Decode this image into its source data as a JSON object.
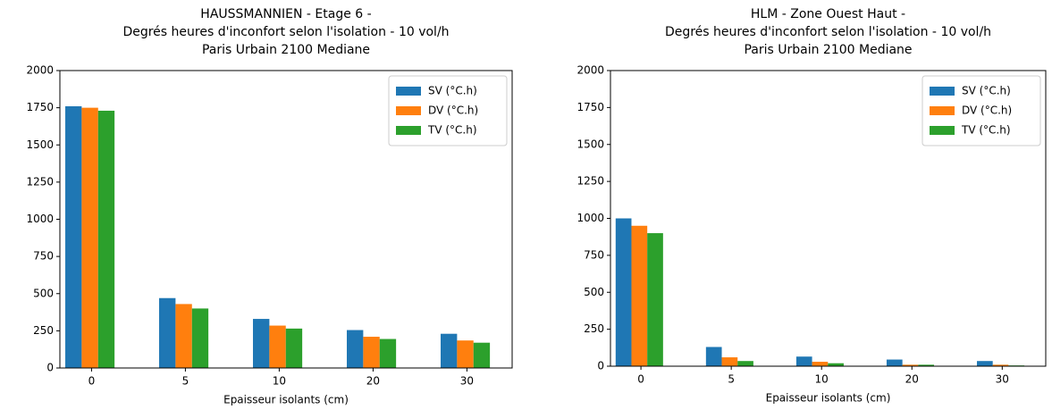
{
  "chart_data": [
    {
      "type": "bar",
      "title": [
        "HAUSSMANNIEN - Etage 6 -",
        "Degrés heures d'inconfort selon l'isolation - 10 vol/h",
        "Paris Urbain 2100 Mediane"
      ],
      "xlabel": "Epaisseur isolants (cm)",
      "categories": [
        "0",
        "5",
        "10",
        "20",
        "30"
      ],
      "series": [
        {
          "name": "SV (°C.h)",
          "color": "#1f77b4",
          "values": [
            1760,
            470,
            330,
            255,
            230
          ]
        },
        {
          "name": "DV (°C.h)",
          "color": "#ff7f0e",
          "values": [
            1750,
            430,
            285,
            210,
            185
          ]
        },
        {
          "name": "TV (°C.h)",
          "color": "#2ca02c",
          "values": [
            1730,
            400,
            265,
            195,
            170
          ]
        }
      ],
      "ylim": [
        0,
        2000
      ],
      "yticks": [
        0,
        250,
        500,
        750,
        1000,
        1250,
        1500,
        1750,
        2000
      ],
      "legend": "upper right"
    },
    {
      "type": "bar",
      "title": [
        "HLM - Zone Ouest Haut -",
        "Degrés heures d'inconfort selon l'isolation - 10 vol/h",
        "Paris Urbain 2100 Mediane"
      ],
      "xlabel": "Epaisseur isolants (cm)",
      "categories": [
        "0",
        "5",
        "10",
        "20",
        "30"
      ],
      "series": [
        {
          "name": "SV (°C.h)",
          "color": "#1f77b4",
          "values": [
            1000,
            130,
            65,
            45,
            35
          ]
        },
        {
          "name": "DV (°C.h)",
          "color": "#ff7f0e",
          "values": [
            950,
            60,
            30,
            10,
            10
          ]
        },
        {
          "name": "TV (°C.h)",
          "color": "#2ca02c",
          "values": [
            900,
            35,
            20,
            10,
            5
          ]
        }
      ],
      "ylim": [
        0,
        2000
      ],
      "yticks": [
        0,
        250,
        500,
        750,
        1000,
        1250,
        1500,
        1750,
        2000
      ],
      "legend": "upper right"
    }
  ]
}
